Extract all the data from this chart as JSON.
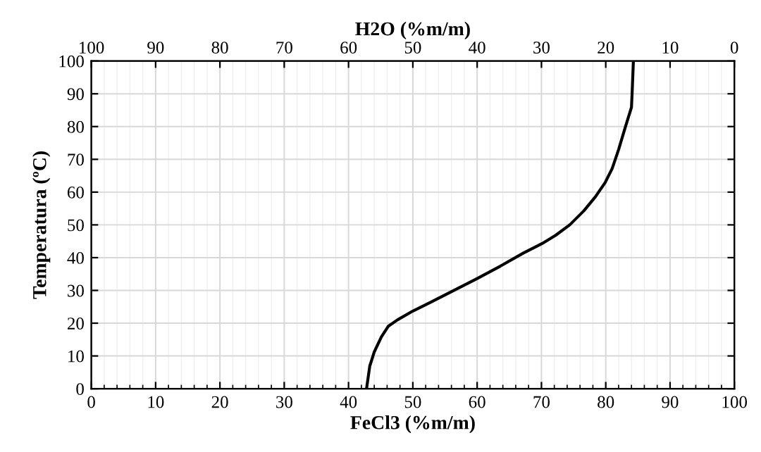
{
  "chart_data": {
    "type": "line",
    "xlabel": "FeCl3 (%m/m)",
    "ylabel": "Temperatura (ºC)",
    "x2label": "H2O (%m/m)",
    "xlim": [
      0,
      100
    ],
    "xticks": [
      0,
      10,
      20,
      30,
      40,
      50,
      60,
      70,
      80,
      90,
      100
    ],
    "x2lim": [
      100,
      0
    ],
    "x2ticks": [
      100,
      90,
      80,
      70,
      60,
      50,
      40,
      30,
      20,
      10,
      0
    ],
    "ylim": [
      0,
      100
    ],
    "yticks": [
      0,
      10,
      20,
      30,
      40,
      50,
      60,
      70,
      80,
      90,
      100
    ],
    "grid": true,
    "legend": false,
    "marker": "none",
    "line_style": "solid",
    "series": [
      {
        "color": "#000000",
        "x": [
          42.8,
          43.3,
          44.0,
          45.1,
          46.2,
          47.6,
          50.0,
          52.7,
          56.3,
          59.9,
          63.6,
          67.2,
          70.1,
          72.2,
          74.4,
          76.6,
          78.4,
          79.9,
          81.0,
          82.0,
          83.1,
          84.0,
          84.1,
          84.3
        ],
        "values": [
          0,
          6.9,
          11.2,
          15.8,
          19.1,
          21.0,
          23.7,
          26.3,
          29.9,
          33.5,
          37.4,
          41.4,
          44.3,
          46.8,
          50.0,
          54.3,
          58.6,
          62.9,
          67.2,
          73.0,
          80.2,
          85.9,
          90.2,
          100
        ]
      }
    ]
  }
}
